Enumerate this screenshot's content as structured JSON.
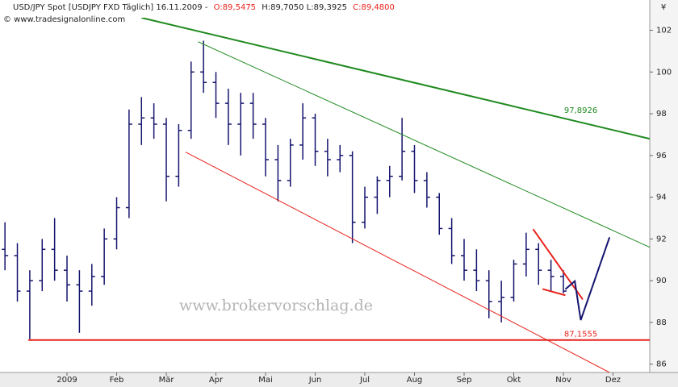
{
  "chart_data": {
    "type": "ohlc",
    "title_parts": [
      "USD/JPY Spot [USDJPY FXD  Täglich] 16.11.2009 -",
      "O:89,5475",
      "H:89,7050 L:89,3925",
      "C:89,4800"
    ],
    "subtitle": "© www.tradesignalonline.com",
    "watermark": "www.brokervorschlag.de",
    "currency_symbol": "¥",
    "color": "#14146e",
    "x": [
      -0.75,
      -0.5,
      -0.25,
      0,
      0.25,
      0.5,
      0.75,
      1,
      1.25,
      1.5,
      1.75,
      2,
      2.25,
      2.5,
      2.75,
      3,
      3.25,
      3.5,
      3.75,
      4,
      4.25,
      4.5,
      4.75,
      5,
      5.25,
      5.5,
      5.75,
      6,
      6.25,
      6.5,
      6.75,
      7,
      7.25,
      7.5,
      7.75,
      8,
      8.25,
      8.5,
      8.75,
      9,
      9.25,
      9.5,
      9.75,
      10,
      10.25,
      10.5
    ],
    "open": [
      91.5,
      91.2,
      89.5,
      90.0,
      91.5,
      90.5,
      89.8,
      89.5,
      90.2,
      92.0,
      93.5,
      97.5,
      97.8,
      97.5,
      95.0,
      97.2,
      100.0,
      99.5,
      98.5,
      97.5,
      98.5,
      97.5,
      95.8,
      94.8,
      96.5,
      97.8,
      96.2,
      95.8,
      96.0,
      92.8,
      94.0,
      94.8,
      95.0,
      96.2,
      94.8,
      94.0,
      92.5,
      91.2,
      90.5,
      90.0,
      89.0,
      89.2,
      90.8,
      91.5,
      90.5,
      90.2
    ],
    "high": [
      92.8,
      91.8,
      90.5,
      92.0,
      93.0,
      91.2,
      90.5,
      90.8,
      92.5,
      94.0,
      98.2,
      98.8,
      98.5,
      97.8,
      97.5,
      100.5,
      101.5,
      100.0,
      99.2,
      99.0,
      99.0,
      97.8,
      96.5,
      96.8,
      98.5,
      98.0,
      96.8,
      96.5,
      96.2,
      94.5,
      95.0,
      95.5,
      97.8,
      96.5,
      95.2,
      94.2,
      93.0,
      92.0,
      91.5,
      90.5,
      90.0,
      91.0,
      92.3,
      91.8,
      91.0,
      90.5
    ],
    "low": [
      90.5,
      89.0,
      87.2,
      89.5,
      90.0,
      89.0,
      87.5,
      88.8,
      89.8,
      91.5,
      93.0,
      96.5,
      96.8,
      93.8,
      94.5,
      96.8,
      99.0,
      97.8,
      96.5,
      96.0,
      96.8,
      95.0,
      93.8,
      94.5,
      95.8,
      95.5,
      95.0,
      95.2,
      91.8,
      92.5,
      93.2,
      94.0,
      94.8,
      94.2,
      93.5,
      92.2,
      90.8,
      90.0,
      89.5,
      88.2,
      88.0,
      89.0,
      90.2,
      89.8,
      89.5,
      89.4
    ],
    "close": [
      91.2,
      89.5,
      90.0,
      91.5,
      90.5,
      89.8,
      89.5,
      90.2,
      92.0,
      93.5,
      97.5,
      97.8,
      97.5,
      95.0,
      97.2,
      100.0,
      99.5,
      98.5,
      97.5,
      98.5,
      97.5,
      95.8,
      94.8,
      96.5,
      97.8,
      96.2,
      95.8,
      96.0,
      92.8,
      94.0,
      94.8,
      95.0,
      96.2,
      94.8,
      94.0,
      92.5,
      91.2,
      90.5,
      90.0,
      89.0,
      89.2,
      90.8,
      91.5,
      90.5,
      90.2,
      89.5
    ],
    "xlim": [
      -0.85,
      12.24
    ],
    "ylim": [
      85.6,
      102.6
    ],
    "yticks": [
      86,
      88,
      90,
      92,
      94,
      96,
      98,
      100,
      102
    ],
    "xticks": [
      {
        "value": 0.5,
        "label": "2009"
      },
      {
        "value": 1.5,
        "label": "Feb"
      },
      {
        "value": 2.5,
        "label": "Mär"
      },
      {
        "value": 3.5,
        "label": "Apr"
      },
      {
        "value": 4.5,
        "label": "Mai"
      },
      {
        "value": 5.5,
        "label": "Jun"
      },
      {
        "value": 6.5,
        "label": "Jul"
      },
      {
        "value": 7.5,
        "label": "Aug"
      },
      {
        "value": 8.5,
        "label": "Sep"
      },
      {
        "value": 9.5,
        "label": "Okt"
      },
      {
        "value": 10.5,
        "label": "Nov"
      },
      {
        "value": 11.5,
        "label": "Dez"
      }
    ],
    "drawings": [
      {
        "color": "#1f8a1f",
        "width": 2,
        "x": [
          2.0,
          12.24
        ],
        "y": [
          102.6,
          96.8
        ]
      },
      {
        "color": "#1f8a1f",
        "width": 1,
        "x": [
          3.14,
          12.24
        ],
        "y": [
          101.45,
          91.6
        ]
      },
      {
        "color": "#e8231c",
        "width": 1,
        "x": [
          2.89,
          11.43
        ],
        "y": [
          96.16,
          85.6
        ]
      },
      {
        "color": "#e8231c",
        "width": 2,
        "x": [
          -0.28,
          12.24
        ],
        "y": [
          87.1555,
          87.1555
        ]
      },
      {
        "color": "#e8231c",
        "width": 2,
        "x": [
          9.89,
          10.89
        ],
        "y": [
          92.47,
          89.1
        ]
      },
      {
        "color": "#e8231c",
        "width": 2,
        "x": [
          10.08,
          10.54
        ],
        "y": [
          89.6,
          89.3
        ]
      },
      {
        "color": "#14146e",
        "width": 2,
        "x": [
          10.54,
          10.73,
          10.85,
          11.43
        ],
        "y": [
          89.59,
          89.98,
          88.11,
          92.08
        ]
      }
    ],
    "annotations": [
      {
        "text": "97,8926",
        "color": "#1f8a1f",
        "x": 10.85,
        "y": 97.8926
      },
      {
        "text": "87,1555",
        "color": "#e8231c",
        "x": 10.85,
        "y": 87.1555
      }
    ]
  }
}
